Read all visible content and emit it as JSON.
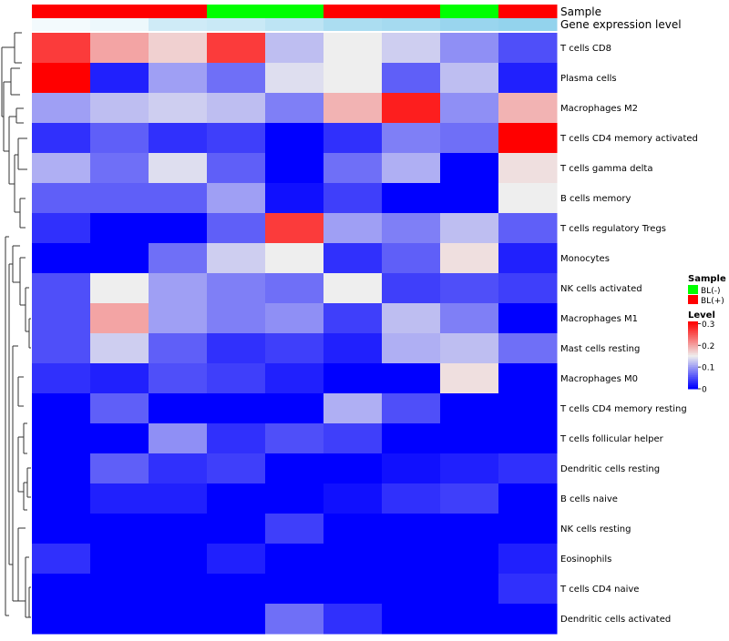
{
  "chart_data": {
    "type": "heatmap",
    "annotation_tracks": [
      {
        "name": "Sample",
        "label": "Sample",
        "values": [
          "BL(+)",
          "BL(+)",
          "BL(+)",
          "BL(-)",
          "BL(-)",
          "BL(+)",
          "BL(+)",
          "BL(-)",
          "BL(+)"
        ]
      },
      {
        "name": "Gene expression level",
        "label": "Gene expression level",
        "values": [
          0.9,
          0.85,
          0.6,
          0.55,
          0.45,
          0.3,
          0.25,
          0.15,
          0.1
        ]
      }
    ],
    "rows": [
      "T cells CD8",
      "Plasma cells",
      "Macrophages M2",
      "T cells CD4 memory activated",
      "T cells gamma delta",
      "B cells memory",
      "T cells regulatory  Tregs",
      "Monocytes",
      "NK cells activated",
      "Macrophages M1",
      "Mast cells resting",
      "Macrophages M0",
      "T cells CD4 memory resting",
      "T cells follicular helper",
      "Dendritic cells resting",
      "B cells naive",
      "NK cells resting",
      "Eosinophils",
      "T cells CD4 naive",
      "Dendritic cells activated"
    ],
    "values": [
      [
        0.27,
        0.2,
        0.17,
        0.27,
        0.12,
        0.15,
        0.13,
        0.09,
        0.05
      ],
      [
        0.31,
        0.02,
        0.1,
        0.07,
        0.14,
        0.15,
        0.06,
        0.12,
        0.02
      ],
      [
        0.1,
        0.12,
        0.13,
        0.12,
        0.08,
        0.19,
        0.29,
        0.09,
        0.19
      ],
      [
        0.03,
        0.06,
        0.03,
        0.04,
        0.0,
        0.03,
        0.08,
        0.07,
        0.31
      ],
      [
        0.11,
        0.07,
        0.14,
        0.06,
        0.0,
        0.07,
        0.11,
        0.0,
        0.16
      ],
      [
        0.06,
        0.06,
        0.06,
        0.1,
        0.01,
        0.04,
        0.0,
        0.0,
        0.15
      ],
      [
        0.03,
        0.0,
        0.0,
        0.06,
        0.27,
        0.1,
        0.08,
        0.12,
        0.06
      ],
      [
        0.0,
        0.0,
        0.07,
        0.13,
        0.15,
        0.03,
        0.06,
        0.16,
        0.02
      ],
      [
        0.05,
        0.15,
        0.1,
        0.08,
        0.07,
        0.15,
        0.04,
        0.05,
        0.04
      ],
      [
        0.05,
        0.2,
        0.1,
        0.08,
        0.09,
        0.04,
        0.12,
        0.08,
        0.0
      ],
      [
        0.05,
        0.13,
        0.06,
        0.03,
        0.04,
        0.02,
        0.11,
        0.12,
        0.07
      ],
      [
        0.03,
        0.02,
        0.05,
        0.04,
        0.02,
        0.0,
        0.0,
        0.16,
        0.0
      ],
      [
        0.0,
        0.06,
        0.0,
        0.0,
        0.0,
        0.11,
        0.05,
        0.0,
        0.0
      ],
      [
        0.0,
        0.0,
        0.09,
        0.03,
        0.05,
        0.04,
        0.0,
        0.0,
        0.0
      ],
      [
        0.0,
        0.06,
        0.03,
        0.04,
        0.0,
        0.0,
        0.01,
        0.02,
        0.03
      ],
      [
        0.0,
        0.02,
        0.02,
        0.0,
        0.0,
        0.01,
        0.03,
        0.04,
        0.0
      ],
      [
        0.0,
        0.0,
        0.0,
        0.0,
        0.04,
        0.0,
        0.0,
        0.0,
        0.0
      ],
      [
        0.03,
        0.0,
        0.0,
        0.02,
        0.0,
        0.0,
        0.0,
        0.0,
        0.02
      ],
      [
        0.0,
        0.0,
        0.0,
        0.0,
        0.0,
        0.0,
        0.0,
        0.0,
        0.03
      ],
      [
        0.0,
        0.0,
        0.0,
        0.0,
        0.07,
        0.03,
        0.0,
        0.0,
        0.0
      ]
    ],
    "color_scale": {
      "min": 0,
      "mid": 0.15,
      "max": 0.31,
      "low_color": "#0000ff",
      "mid_color": "#eeeeee",
      "high_color": "#ff0000"
    },
    "gene_expression_colors": {
      "low": "#87ceeb",
      "high": "#ffffff"
    },
    "legend": {
      "position": "right",
      "sample_title": "Sample",
      "sample_items": [
        {
          "label": "BL(-)",
          "color": "#00ff00"
        },
        {
          "label": "BL(+)",
          "color": "#ff0000"
        }
      ],
      "level_title": "Level",
      "level_ticks": [
        {
          "value": 0.3,
          "label": "0.3"
        },
        {
          "value": 0.2,
          "label": "0.2"
        },
        {
          "value": 0.1,
          "label": "0.1"
        },
        {
          "value": 0,
          "label": "0"
        }
      ]
    }
  }
}
